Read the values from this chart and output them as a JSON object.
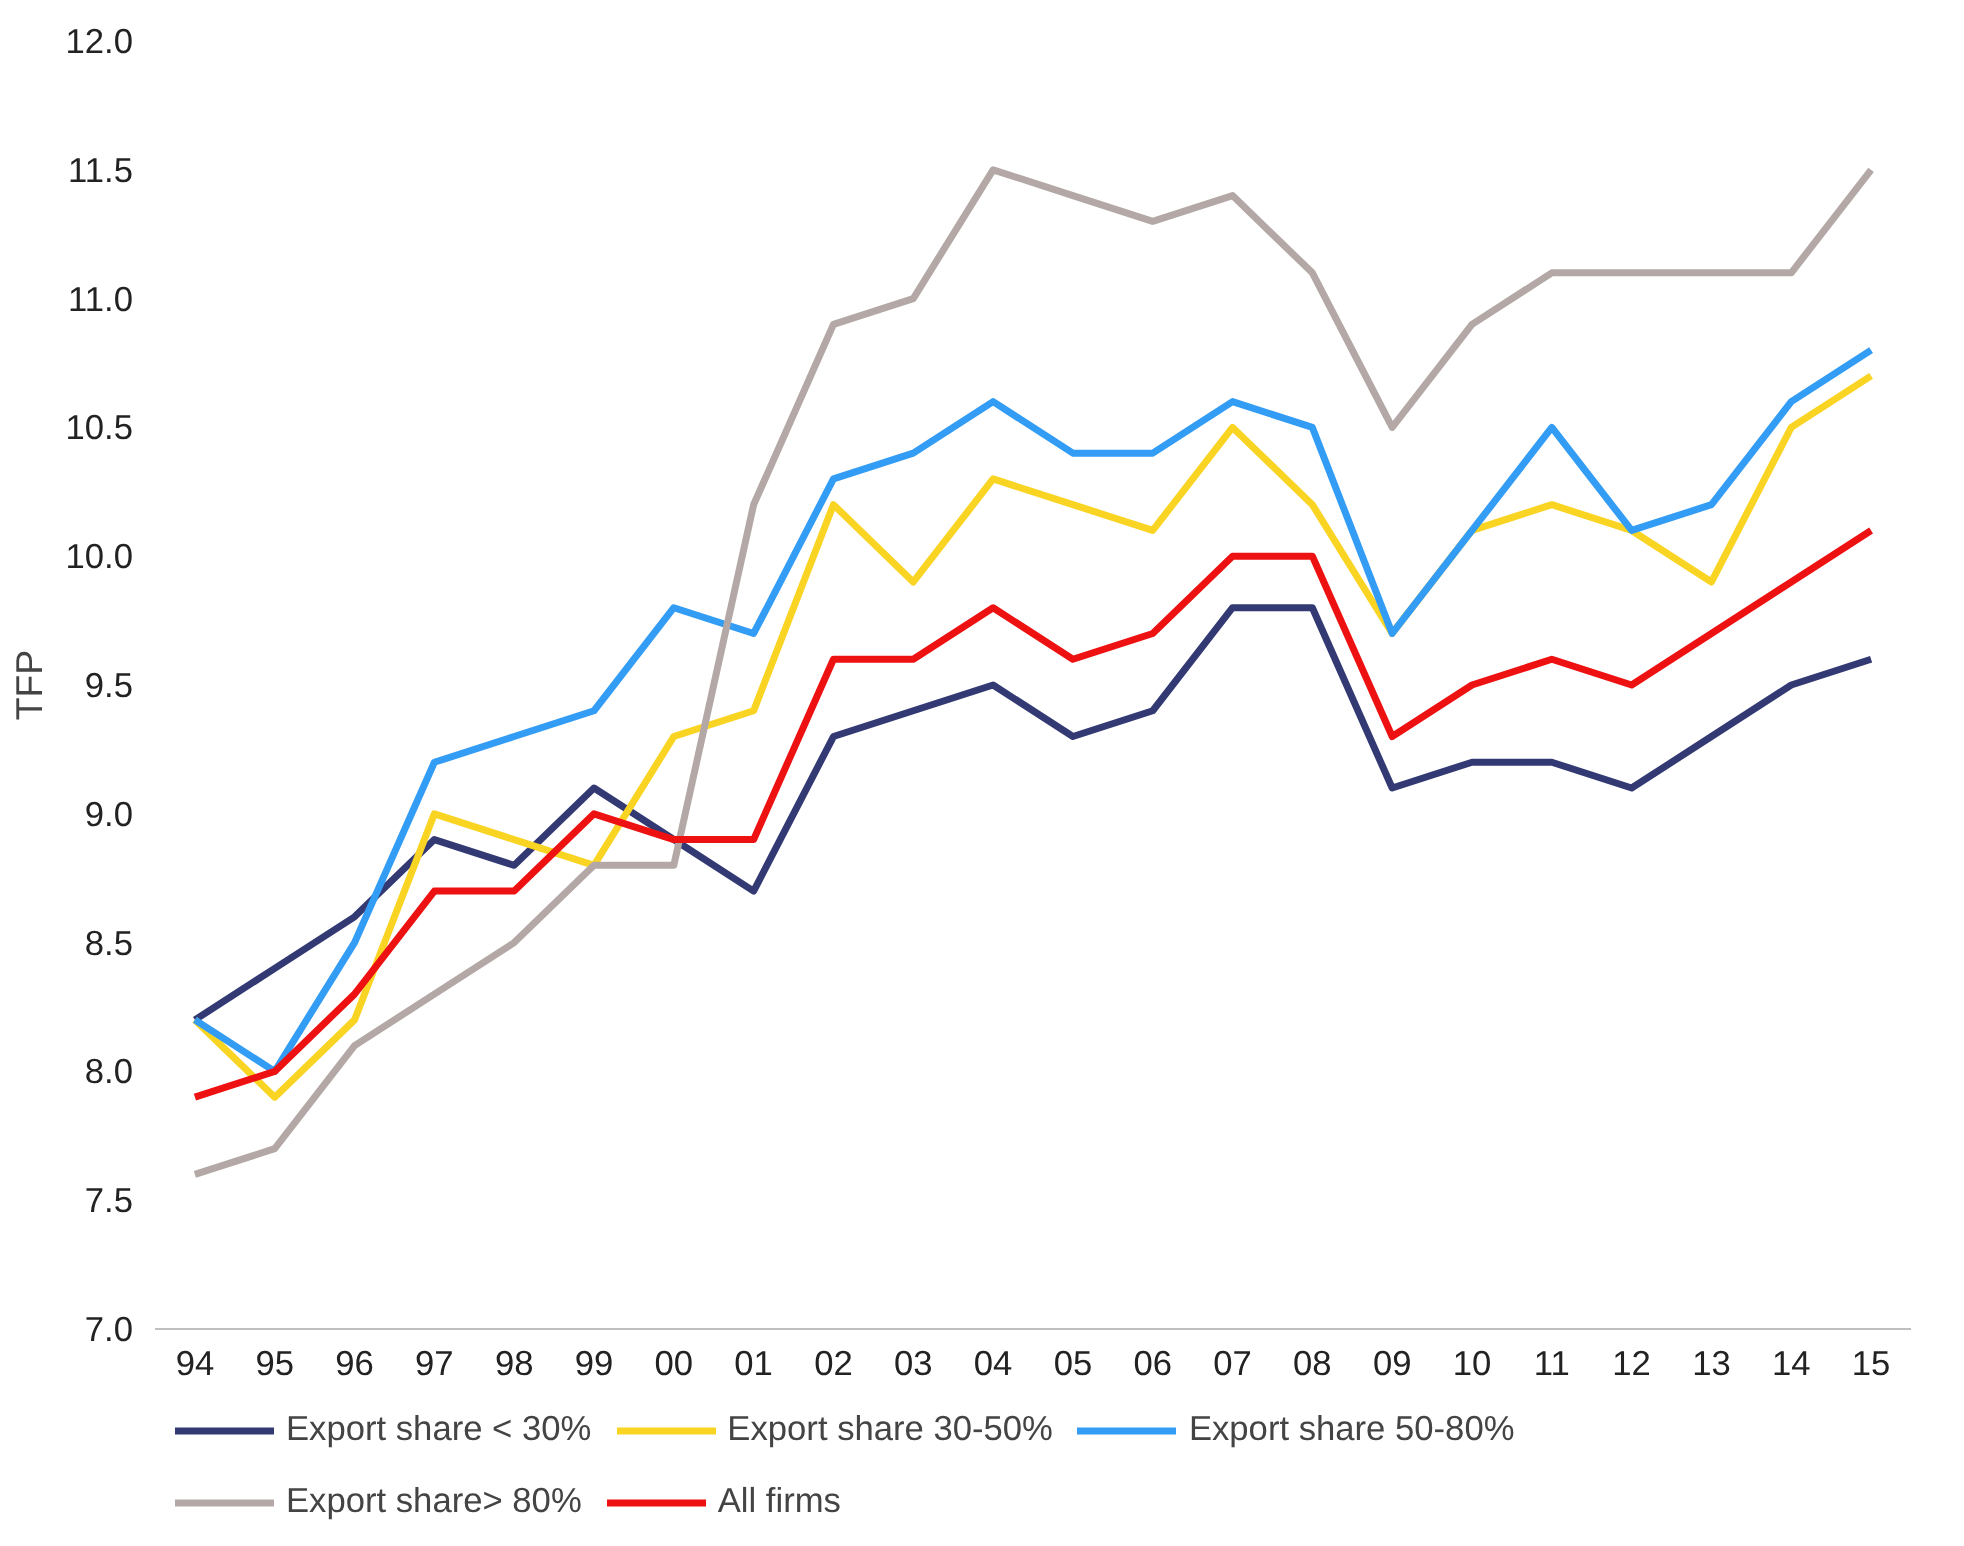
{
  "chart_data": {
    "type": "line",
    "ylabel": "TFP",
    "categories": [
      "94",
      "95",
      "96",
      "97",
      "98",
      "99",
      "00",
      "01",
      "02",
      "03",
      "04",
      "05",
      "06",
      "07",
      "08",
      "09",
      "10",
      "11",
      "12",
      "13",
      "14",
      "15"
    ],
    "series": [
      {
        "name": "Export share < 30%",
        "color": "#333a73",
        "values": [
          8.2,
          8.4,
          8.6,
          8.9,
          8.8,
          9.1,
          8.9,
          8.7,
          9.3,
          9.4,
          9.5,
          9.3,
          9.4,
          9.8,
          9.8,
          9.1,
          9.2,
          9.2,
          9.1,
          9.3,
          9.5,
          9.6
        ]
      },
      {
        "name": "Export share 30-50%",
        "color": "#f9d423",
        "values": [
          8.2,
          7.9,
          8.2,
          9.0,
          8.9,
          8.8,
          9.3,
          9.4,
          10.2,
          9.9,
          10.3,
          10.2,
          10.1,
          10.5,
          10.2,
          9.7,
          10.1,
          10.2,
          10.1,
          9.9,
          10.5,
          10.7
        ]
      },
      {
        "name": "Export share 50-80%",
        "color": "#339cf5",
        "values": [
          8.2,
          8.0,
          8.5,
          9.2,
          9.3,
          9.4,
          9.8,
          9.7,
          10.3,
          10.4,
          10.6,
          10.4,
          10.4,
          10.6,
          10.5,
          9.7,
          10.1,
          10.5,
          10.1,
          10.2,
          10.6,
          10.8
        ]
      },
      {
        "name": "Export share> 80%",
        "color": "#b3a8a5",
        "values": [
          7.6,
          7.7,
          8.1,
          8.3,
          8.5,
          8.8,
          8.8,
          10.2,
          10.9,
          11.0,
          11.5,
          11.4,
          11.3,
          11.4,
          11.1,
          10.5,
          10.9,
          11.1,
          11.1,
          11.1,
          11.1,
          11.5
        ]
      },
      {
        "name": "All firms",
        "color": "#ee1111",
        "values": [
          7.9,
          8.0,
          8.3,
          8.7,
          8.7,
          9.0,
          8.9,
          8.9,
          9.6,
          9.6,
          9.8,
          9.6,
          9.7,
          10.0,
          10.0,
          9.3,
          9.5,
          9.6,
          9.5,
          9.7,
          9.9,
          10.1
        ]
      }
    ],
    "ylim": [
      7.0,
      12.0
    ],
    "yticks": [
      {
        "value": 7,
        "label": "7.0"
      },
      {
        "value": 7.5,
        "label": "7.5"
      },
      {
        "value": 8,
        "label": "8.0"
      },
      {
        "value": 8.5,
        "label": "8.5"
      },
      {
        "value": 9,
        "label": "9.0"
      },
      {
        "value": 9.5,
        "label": "9.5"
      },
      {
        "value": 10,
        "label": "10.0"
      },
      {
        "value": 10.5,
        "label": "10.5"
      },
      {
        "value": 11,
        "label": "11.0"
      },
      {
        "value": 11.5,
        "label": "11.5"
      },
      {
        "value": 12,
        "label": "12.0"
      }
    ],
    "grid": false,
    "legend": "bottom",
    "marker": "none",
    "line_style": "solid"
  }
}
